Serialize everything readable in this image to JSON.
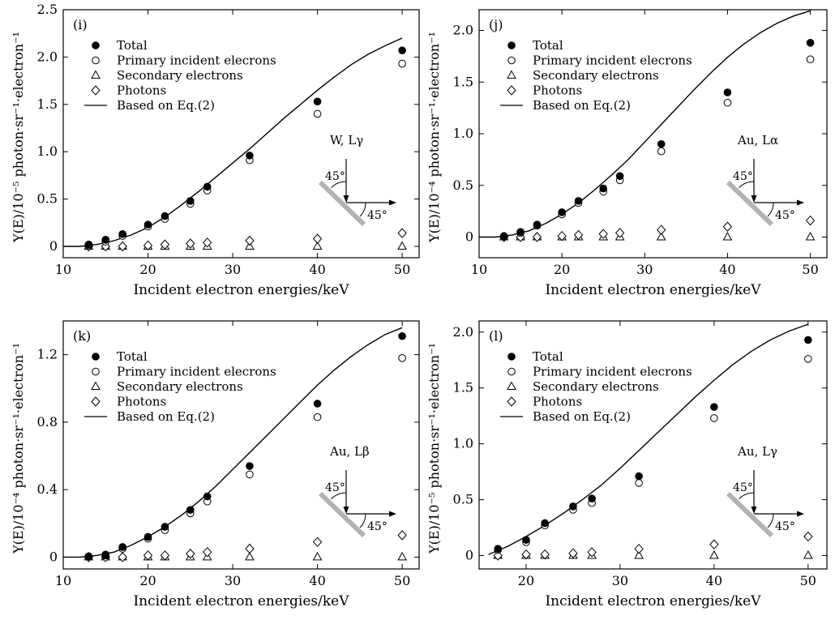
{
  "chart_data": [
    {
      "type": "scatter",
      "panel_label": "(i)",
      "xlabel": "Incident electron energies/keV",
      "ylabel": "Y(E)/10⁻⁵ photon·sr⁻¹·electron⁻¹",
      "xlim": [
        10,
        52
      ],
      "ylim": [
        -0.12,
        2.5
      ],
      "xticks": [
        10,
        20,
        30,
        40,
        50
      ],
      "yticks": [
        0,
        0.5,
        1.0,
        1.5,
        2.0,
        2.5
      ],
      "ytick_labels": [
        "0",
        "0.5",
        "1.0",
        "1.5",
        "2.0",
        "2.5"
      ],
      "legend_position": "top-left",
      "inset_label": "W, Lγ",
      "inset_angle_top": "45°",
      "inset_angle_bottom": "45°",
      "x": [
        13,
        15,
        17,
        20,
        22,
        25,
        27,
        32,
        40,
        50
      ],
      "series": [
        {
          "name": "Total",
          "marker": "filled-circle",
          "values": [
            0.02,
            0.07,
            0.13,
            0.23,
            0.32,
            0.48,
            0.63,
            0.96,
            1.53,
            2.07
          ]
        },
        {
          "name": "Primary incident elecrons",
          "marker": "open-circle",
          "values": [
            0.01,
            0.05,
            0.11,
            0.21,
            0.29,
            0.45,
            0.59,
            0.91,
            1.4,
            1.93
          ]
        },
        {
          "name": "Secondary electrons",
          "marker": "open-triangle",
          "values": [
            0,
            0,
            0,
            0,
            0,
            0,
            0,
            0,
            0,
            0
          ]
        },
        {
          "name": "Photons",
          "marker": "open-diamond",
          "values": [
            0,
            0,
            0,
            0.01,
            0.02,
            0.03,
            0.04,
            0.06,
            0.08,
            0.14
          ]
        },
        {
          "name": "Based on Eq.(2)",
          "marker": "line",
          "x": [
            10,
            12,
            14,
            16,
            18,
            20,
            22,
            24,
            26,
            28,
            30,
            32,
            34,
            36,
            38,
            40,
            42,
            44,
            46,
            48,
            50
          ],
          "values": [
            0,
            0,
            0.02,
            0.06,
            0.12,
            0.2,
            0.31,
            0.44,
            0.58,
            0.73,
            0.88,
            1.03,
            1.19,
            1.35,
            1.5,
            1.65,
            1.79,
            1.92,
            2.03,
            2.12,
            2.2
          ]
        }
      ]
    },
    {
      "type": "scatter",
      "panel_label": "(j)",
      "xlabel": "Incident electron energies/keV",
      "ylabel": "Y(E)/10⁻⁴ photon·sr⁻¹·electron⁻¹",
      "xlim": [
        10,
        52
      ],
      "ylim": [
        -0.2,
        2.2
      ],
      "xticks": [
        10,
        20,
        30,
        40,
        50
      ],
      "yticks": [
        0,
        0.5,
        1.0,
        1.5,
        2.0
      ],
      "ytick_labels": [
        "0",
        "0.5",
        "1.0",
        "1.5",
        "2.0"
      ],
      "legend_position": "top-left",
      "inset_label": "Au, Lα",
      "inset_angle_top": "45°",
      "inset_angle_bottom": "45°",
      "x": [
        13,
        15,
        17,
        20,
        22,
        25,
        27,
        32,
        40,
        50
      ],
      "series": [
        {
          "name": "Total",
          "marker": "filled-circle",
          "values": [
            0.01,
            0.05,
            0.12,
            0.24,
            0.35,
            0.47,
            0.59,
            0.9,
            1.4,
            1.88
          ]
        },
        {
          "name": "Primary incident elecrons",
          "marker": "open-circle",
          "values": [
            0.005,
            0.04,
            0.11,
            0.22,
            0.33,
            0.44,
            0.55,
            0.83,
            1.3,
            1.72
          ]
        },
        {
          "name": "Secondary electrons",
          "marker": "open-triangle",
          "values": [
            0,
            0,
            0,
            0,
            0,
            0,
            0,
            0,
            0,
            0
          ]
        },
        {
          "name": "Photons",
          "marker": "open-diamond",
          "values": [
            0,
            0,
            0,
            0.01,
            0.02,
            0.03,
            0.04,
            0.07,
            0.1,
            0.16
          ]
        },
        {
          "name": "Based on Eq.(2)",
          "marker": "line",
          "x": [
            10,
            12,
            14,
            16,
            18,
            20,
            22,
            24,
            26,
            28,
            30,
            32,
            34,
            36,
            38,
            40,
            42,
            44,
            46,
            48,
            50
          ],
          "values": [
            0,
            0,
            0.02,
            0.06,
            0.13,
            0.22,
            0.33,
            0.46,
            0.6,
            0.75,
            0.92,
            1.09,
            1.26,
            1.43,
            1.59,
            1.74,
            1.87,
            1.98,
            2.07,
            2.14,
            2.19
          ]
        }
      ]
    },
    {
      "type": "scatter",
      "panel_label": "(k)",
      "xlabel": "Incident electron energies/keV",
      "ylabel": "Y(E)/10⁻⁴ photon·sr⁻¹·electron⁻¹",
      "xlim": [
        10,
        52
      ],
      "ylim": [
        -0.07,
        1.4
      ],
      "xticks": [
        10,
        20,
        30,
        40,
        50
      ],
      "yticks": [
        0,
        0.4,
        0.8,
        1.2
      ],
      "ytick_labels": [
        "0",
        "0.4",
        "0.8",
        "1.2"
      ],
      "legend_position": "top-left",
      "inset_label": "Au, Lβ",
      "inset_angle_top": "45°",
      "inset_angle_bottom": "45°",
      "x": [
        13,
        15,
        17,
        20,
        22,
        25,
        27,
        32,
        40,
        50
      ],
      "series": [
        {
          "name": "Total",
          "marker": "filled-circle",
          "values": [
            0.005,
            0.015,
            0.06,
            0.12,
            0.18,
            0.28,
            0.36,
            0.54,
            0.91,
            1.31
          ]
        },
        {
          "name": "Primary incident elecrons",
          "marker": "open-circle",
          "values": [
            0.003,
            0.01,
            0.05,
            0.11,
            0.16,
            0.26,
            0.33,
            0.49,
            0.83,
            1.18
          ]
        },
        {
          "name": "Secondary electrons",
          "marker": "open-triangle",
          "values": [
            0,
            0,
            0,
            0,
            0,
            0,
            0,
            0,
            0,
            0
          ]
        },
        {
          "name": "Photons",
          "marker": "open-diamond",
          "values": [
            0,
            0,
            0,
            0.01,
            0.01,
            0.02,
            0.03,
            0.05,
            0.09,
            0.13
          ]
        },
        {
          "name": "Based on Eq.(2)",
          "marker": "line",
          "x": [
            10,
            12,
            14,
            16,
            18,
            20,
            22,
            24,
            26,
            28,
            30,
            32,
            34,
            36,
            38,
            40,
            42,
            44,
            46,
            48,
            50
          ],
          "values": [
            0,
            0,
            0.01,
            0.03,
            0.07,
            0.12,
            0.18,
            0.25,
            0.33,
            0.42,
            0.52,
            0.62,
            0.72,
            0.82,
            0.92,
            1.02,
            1.11,
            1.19,
            1.26,
            1.32,
            1.36
          ]
        }
      ]
    },
    {
      "type": "scatter",
      "panel_label": "(l)",
      "xlabel": "Incident electron energies/keV",
      "ylabel": "Y(E)/10⁻⁵ photon·sr⁻¹·electron⁻¹",
      "xlim": [
        15,
        52
      ],
      "ylim": [
        -0.12,
        2.1
      ],
      "xticks": [
        20,
        30,
        40,
        50
      ],
      "yticks": [
        0,
        0.5,
        1.0,
        1.5,
        2.0
      ],
      "ytick_labels": [
        "0",
        "0.5",
        "1.0",
        "1.5",
        "2.0"
      ],
      "legend_position": "top-left",
      "inset_label": "Au, Lγ",
      "inset_angle_top": "45°",
      "inset_angle_bottom": "45°",
      "x": [
        17,
        20,
        22,
        25,
        27,
        32,
        40,
        50
      ],
      "series": [
        {
          "name": "Total",
          "marker": "filled-circle",
          "values": [
            0.06,
            0.14,
            0.29,
            0.44,
            0.51,
            0.71,
            1.33,
            1.93
          ]
        },
        {
          "name": "Primary incident elecrons",
          "marker": "open-circle",
          "values": [
            0.05,
            0.12,
            0.27,
            0.41,
            0.47,
            0.65,
            1.23,
            1.76
          ]
        },
        {
          "name": "Secondary electrons",
          "marker": "open-triangle",
          "values": [
            0,
            0,
            0,
            0,
            0,
            0,
            0,
            0
          ]
        },
        {
          "name": "Photons",
          "marker": "open-diamond",
          "values": [
            0,
            0.01,
            0.01,
            0.02,
            0.03,
            0.06,
            0.1,
            0.17
          ]
        },
        {
          "name": "Based on Eq.(2)",
          "marker": "line",
          "x": [
            16,
            18,
            20,
            22,
            24,
            26,
            28,
            30,
            32,
            34,
            36,
            38,
            40,
            42,
            44,
            46,
            48,
            50
          ],
          "values": [
            0.01,
            0.08,
            0.17,
            0.27,
            0.38,
            0.5,
            0.63,
            0.78,
            0.94,
            1.1,
            1.26,
            1.42,
            1.57,
            1.71,
            1.83,
            1.93,
            2.01,
            2.07
          ]
        }
      ]
    }
  ]
}
